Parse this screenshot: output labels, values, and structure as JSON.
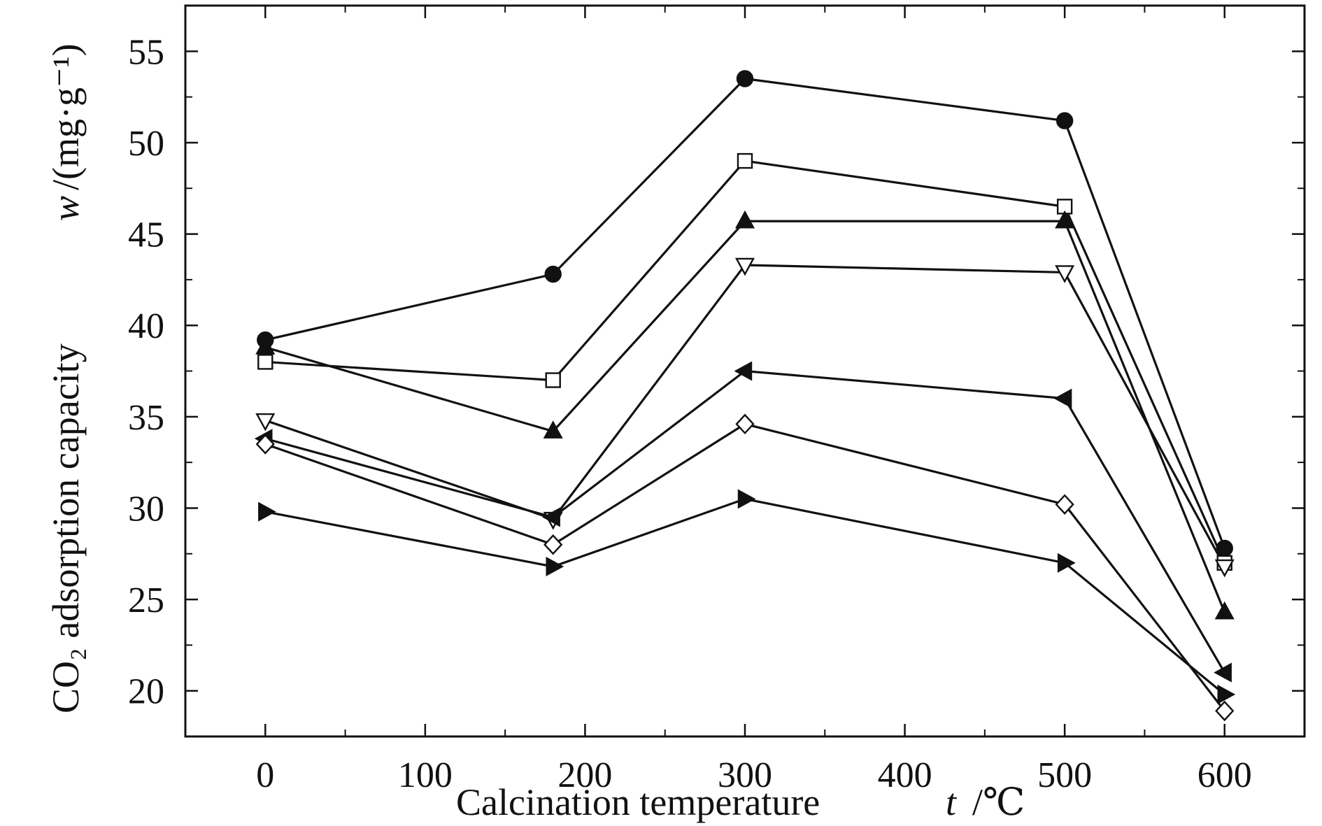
{
  "chart_data": {
    "type": "line",
    "title": "",
    "xlabel": {
      "text": "Calcination temperature",
      "var": "t",
      "unit": "/℃"
    },
    "ylabel": {
      "text": "CO₂ adsorption capacity",
      "var": "w",
      "unit": "/(mg·g⁻¹)"
    },
    "xlim": [
      -50,
      650
    ],
    "ylim": [
      17.5,
      57.5
    ],
    "x_ticks": [
      0,
      100,
      200,
      300,
      400,
      500,
      600
    ],
    "x_tick_labels": [
      "0",
      "100",
      "200",
      "300",
      "400",
      "500",
      "600"
    ],
    "y_ticks": [
      20,
      25,
      30,
      35,
      40,
      45,
      50,
      55
    ],
    "y_tick_labels": [
      "20",
      "25",
      "30",
      "35",
      "40",
      "45",
      "50",
      "55"
    ],
    "grid": false,
    "legend": "none",
    "x": [
      0,
      180,
      300,
      500,
      600
    ],
    "series": [
      {
        "marker": "filled-circle",
        "values": [
          39.2,
          42.8,
          53.5,
          51.2,
          27.8
        ]
      },
      {
        "marker": "open-square",
        "values": [
          38.0,
          37.0,
          49.0,
          46.5,
          27.0
        ]
      },
      {
        "marker": "filled-triangle-up",
        "values": [
          38.8,
          34.2,
          45.7,
          45.7,
          24.3
        ]
      },
      {
        "marker": "open-triangle-down",
        "values": [
          34.8,
          29.4,
          43.3,
          42.9,
          26.8
        ]
      },
      {
        "marker": "filled-triangle-left",
        "values": [
          33.8,
          29.5,
          37.5,
          36.0,
          21.0
        ]
      },
      {
        "marker": "open-diamond",
        "values": [
          33.5,
          28.0,
          34.6,
          30.2,
          18.9
        ]
      },
      {
        "marker": "filled-triangle-right",
        "values": [
          29.8,
          26.8,
          30.5,
          27.0,
          19.8
        ]
      }
    ]
  }
}
